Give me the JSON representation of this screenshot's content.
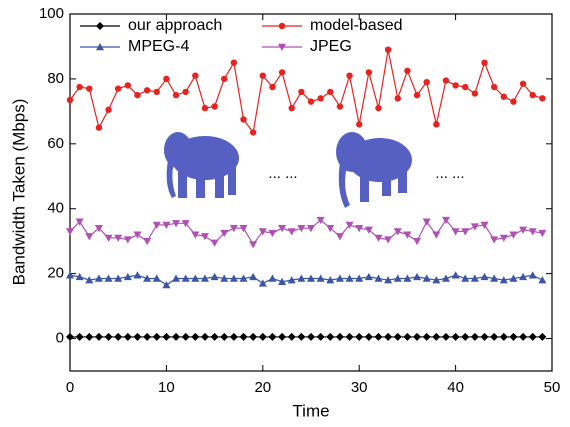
{
  "chart_data": {
    "type": "line",
    "x_label": "Time",
    "y_label": "Bandwidth Taken (Mbps)",
    "x": [
      0,
      1,
      2,
      3,
      4,
      5,
      6,
      7,
      8,
      9,
      10,
      11,
      12,
      13,
      14,
      15,
      16,
      17,
      18,
      19,
      20,
      21,
      22,
      23,
      24,
      25,
      26,
      27,
      28,
      29,
      30,
      31,
      32,
      33,
      34,
      35,
      36,
      37,
      38,
      39,
      40,
      41,
      42,
      43,
      44,
      45,
      46,
      47,
      48,
      49
    ],
    "xlim": [
      0,
      50
    ],
    "xticks": [
      0,
      10,
      20,
      30,
      40,
      50
    ],
    "ylim": [
      -10,
      100
    ],
    "yticks": [
      0,
      20,
      40,
      60,
      80,
      100
    ],
    "annotations": [
      "... ...",
      "... ..."
    ],
    "series": [
      {
        "name": "our approach",
        "color": "#000000",
        "marker": "diamond",
        "values": [
          0.5,
          0.5,
          0.5,
          0.5,
          0.5,
          0.5,
          0.5,
          0.5,
          0.5,
          0.5,
          0.5,
          0.5,
          0.5,
          0.5,
          0.5,
          0.5,
          0.5,
          0.5,
          0.5,
          0.5,
          0.5,
          0.5,
          0.5,
          0.5,
          0.5,
          0.5,
          0.5,
          0.5,
          0.5,
          0.5,
          0.5,
          0.5,
          0.5,
          0.5,
          0.5,
          0.5,
          0.5,
          0.5,
          0.5,
          0.5,
          0.5,
          0.5,
          0.5,
          0.5,
          0.5,
          0.5,
          0.5,
          0.5,
          0.5,
          0.5
        ]
      },
      {
        "name": "model-based",
        "color": "#e8231f",
        "marker": "circle",
        "values": [
          73.5,
          77.5,
          77,
          65,
          70.5,
          77,
          78,
          75,
          76.5,
          76,
          80,
          75,
          76,
          81,
          71,
          71.5,
          80,
          85,
          67.5,
          63.5,
          81,
          77.5,
          82,
          71,
          76,
          73,
          74,
          76,
          71.5,
          81,
          66,
          82,
          71,
          89,
          74,
          82.5,
          75,
          79,
          66,
          79.5,
          78,
          77.5,
          75.5,
          85,
          77.5,
          74.5,
          73,
          78.5,
          75,
          74
        ]
      },
      {
        "name": "MPEG-4",
        "color": "#3c55a5",
        "marker": "up",
        "values": [
          19.5,
          19,
          18,
          18.5,
          18.5,
          18.5,
          19,
          19.5,
          18.5,
          18.5,
          16.5,
          18.5,
          18.5,
          18.5,
          18.5,
          19,
          18.5,
          18.5,
          18.5,
          19,
          17,
          18.5,
          17.5,
          18,
          18.5,
          18.5,
          18.5,
          18,
          18.5,
          18.5,
          18.5,
          19,
          18.5,
          18,
          18.5,
          18.5,
          19,
          18.5,
          18,
          18.5,
          19.5,
          18.5,
          18.5,
          19,
          18.5,
          18,
          18.5,
          19,
          19.5,
          18
        ]
      },
      {
        "name": "JPEG",
        "color": "#b04fb5",
        "marker": "down",
        "values": [
          33,
          36,
          31.5,
          34,
          31,
          31,
          30.5,
          32,
          30,
          35,
          35,
          35.5,
          35.5,
          32,
          31.5,
          29.5,
          32.5,
          34,
          34,
          29,
          33,
          32.5,
          34,
          33,
          34,
          34,
          36.5,
          34,
          31.5,
          35,
          34,
          33.5,
          31,
          30.5,
          33,
          32,
          30,
          36,
          32,
          36.5,
          33,
          33,
          34.5,
          35,
          30.5,
          31,
          32,
          33.5,
          33,
          32.5
        ]
      }
    ]
  }
}
